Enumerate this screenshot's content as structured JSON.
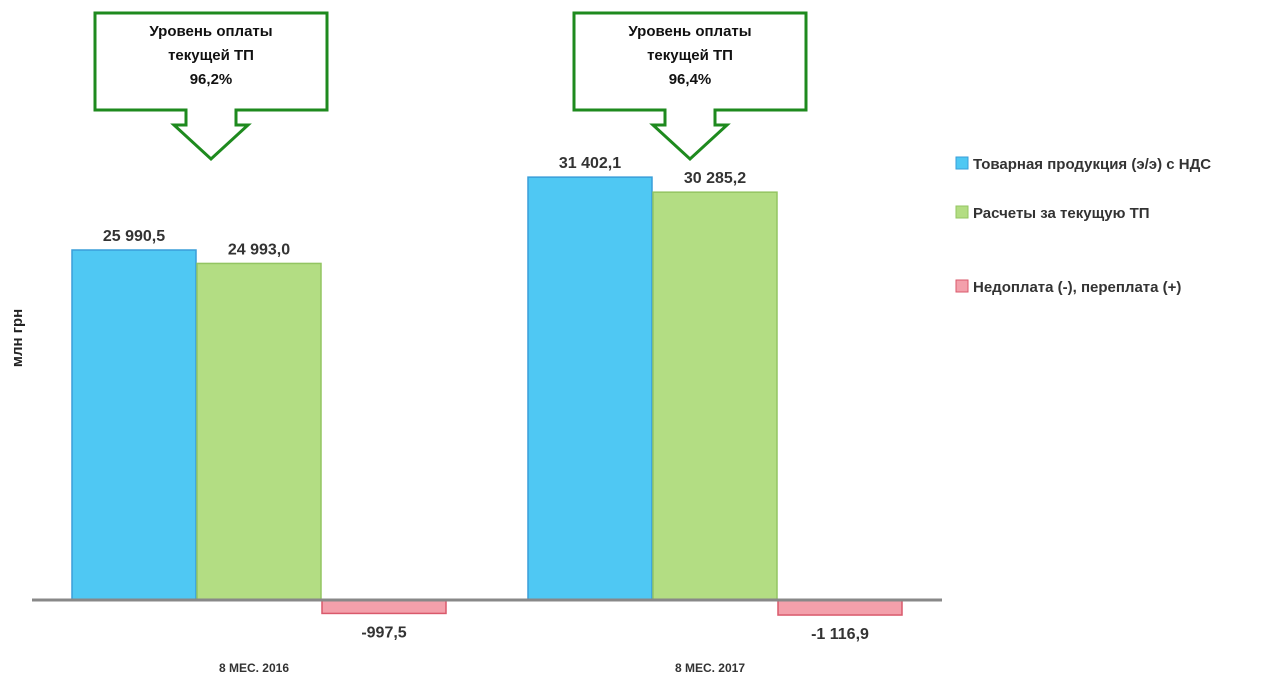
{
  "chart_data": {
    "type": "bar",
    "categories": [
      "8 МЕС. 2016",
      "8 МЕС. 2017"
    ],
    "series": [
      {
        "name": "Товарная продукция (э/э) с НДС",
        "values": [
          25990.5,
          31402.1
        ],
        "labels": [
          "25 990,5",
          "31 402,1"
        ],
        "color": "#4FC8F3",
        "stroke": "#3A9ED9"
      },
      {
        "name": "Расчеты за текущую ТП",
        "values": [
          24993.0,
          30285.2
        ],
        "labels": [
          "24 993,0",
          "30 285,2"
        ],
        "color": "#B3DD83",
        "stroke": "#93C562"
      },
      {
        "name": "Недоплата (-), переплата (+)",
        "values": [
          -997.5,
          -1116.9
        ],
        "labels": [
          "-997,5",
          "-1 116,9"
        ],
        "color": "#F3A0AB",
        "stroke": "#D9596B"
      }
    ],
    "ylabel": "млн грн",
    "ylim": [
      -1500,
      36000
    ],
    "grid": false,
    "legend": "right",
    "annotations": [
      {
        "category": "8 МЕС. 2016",
        "lines": [
          "Уровень оплаты",
          "текущей ТП",
          "96,2%"
        ]
      },
      {
        "category": "8 МЕС. 2017",
        "lines": [
          "Уровень оплаты",
          "текущей ТП",
          "96,4%"
        ]
      }
    ],
    "callout_color": "#1E8A1E"
  }
}
